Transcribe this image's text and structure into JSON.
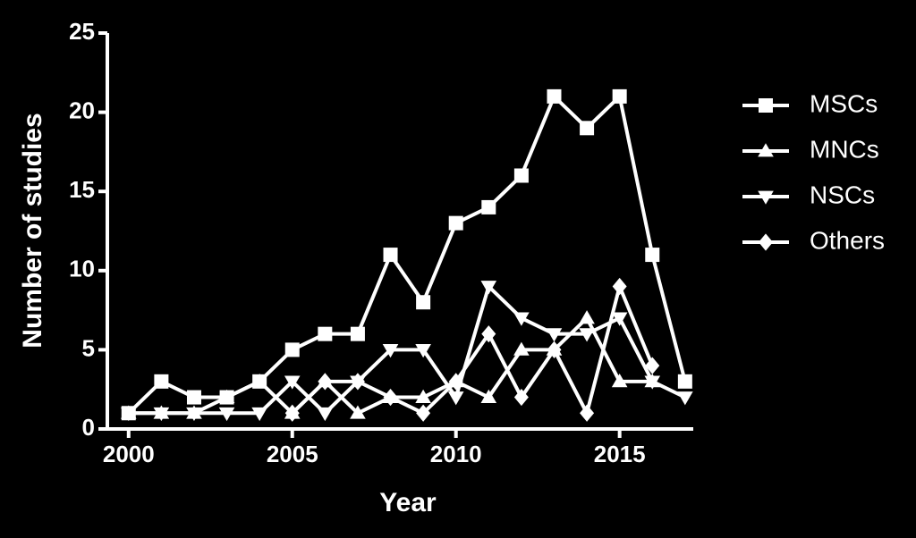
{
  "chart_data": {
    "type": "line",
    "x_label": "Year",
    "y_label": "Number of studies",
    "x": [
      2000,
      2001,
      2002,
      2003,
      2004,
      2005,
      2006,
      2007,
      2008,
      2009,
      2010,
      2011,
      2012,
      2013,
      2014,
      2015,
      2016,
      2017
    ],
    "xlim": [
      1999.35,
      2017.25
    ],
    "xticks": [
      2000,
      2005,
      2010,
      2015
    ],
    "ylim": [
      0,
      25
    ],
    "yticks": [
      0,
      5,
      10,
      15,
      20,
      25
    ],
    "legend_position": "right",
    "series": [
      {
        "name": "MSCs",
        "color": "#ffffff",
        "marker": "square",
        "values": [
          1,
          3,
          2,
          2,
          3,
          5,
          6,
          6,
          11,
          8,
          13,
          14,
          16,
          21,
          19,
          21,
          11,
          3
        ]
      },
      {
        "name": "MNCs",
        "color": "#ffffff",
        "marker": "triangle-up",
        "values": [
          1,
          1,
          1,
          2,
          3,
          1,
          3,
          1,
          2,
          2,
          3,
          2,
          5,
          5,
          7,
          3,
          3,
          null
        ]
      },
      {
        "name": "NSCs",
        "color": "#ffffff",
        "marker": "triangle-down",
        "values": [
          1,
          1,
          1,
          1,
          1,
          3,
          1,
          3,
          5,
          5,
          2,
          9,
          7,
          6,
          6,
          7,
          3,
          2
        ]
      },
      {
        "name": "Others",
        "color": "#ffffff",
        "marker": "diamond",
        "values": [
          null,
          null,
          null,
          null,
          null,
          1,
          3,
          3,
          2,
          1,
          3,
          6,
          2,
          5,
          1,
          9,
          4,
          null
        ]
      }
    ]
  }
}
